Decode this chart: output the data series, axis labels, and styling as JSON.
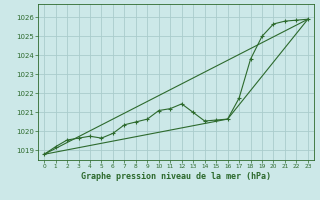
{
  "title": "Graphe pression niveau de la mer (hPa)",
  "bg_color": "#cce8e8",
  "grid_color": "#aacccc",
  "line_color": "#2d6a2d",
  "xlim": [
    -0.5,
    23.5
  ],
  "ylim": [
    1018.5,
    1026.7
  ],
  "yticks": [
    1019,
    1020,
    1021,
    1022,
    1023,
    1024,
    1025,
    1026
  ],
  "xticks": [
    0,
    1,
    2,
    3,
    4,
    5,
    6,
    7,
    8,
    9,
    10,
    11,
    12,
    13,
    14,
    15,
    16,
    17,
    18,
    19,
    20,
    21,
    22,
    23
  ],
  "series1_x": [
    0,
    1,
    2,
    3,
    4,
    5,
    6,
    7,
    8,
    9,
    10,
    11,
    12,
    13,
    14,
    15,
    16,
    17,
    18,
    19,
    20,
    21,
    22,
    23
  ],
  "series1_y": [
    1018.8,
    1019.2,
    1019.55,
    1019.65,
    1019.75,
    1019.65,
    1019.9,
    1020.35,
    1020.5,
    1020.65,
    1021.1,
    1021.2,
    1021.45,
    1021.0,
    1020.55,
    1020.6,
    1020.65,
    1021.75,
    1023.8,
    1025.0,
    1025.65,
    1025.8,
    1025.85,
    1025.9
  ],
  "series2_x": [
    0,
    23
  ],
  "series2_y": [
    1018.8,
    1025.9
  ],
  "series3_x": [
    0,
    16,
    23
  ],
  "series3_y": [
    1018.8,
    1020.65,
    1025.9
  ]
}
